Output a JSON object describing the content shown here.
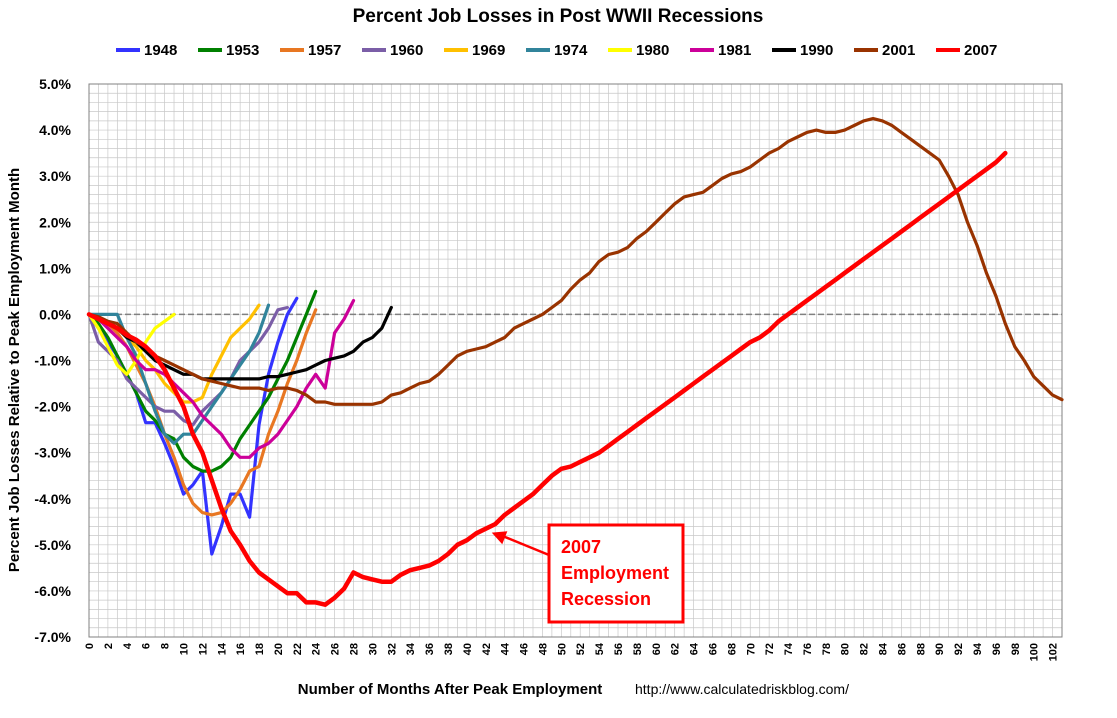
{
  "chart_data": {
    "type": "line",
    "title": "Percent Job Losses in Post WWII Recessions",
    "xlabel": "Number of Months After Peak Employment",
    "ylabel": "Percent Job Losses Relative to Peak Employment Month",
    "source": "http://www.calculatedriskblog.com/",
    "xlim": [
      0,
      103
    ],
    "ylim": [
      -7.0,
      5.0
    ],
    "grid": true,
    "legend_position": "top",
    "x_ticks": [
      "0",
      "2",
      "4",
      "6",
      "8",
      "10",
      "12",
      "14",
      "16",
      "18",
      "20",
      "22",
      "24",
      "26",
      "28",
      "30",
      "32",
      "34",
      "36",
      "38",
      "40",
      "42",
      "44",
      "46",
      "48",
      "50",
      "52",
      "54",
      "56",
      "58",
      "60",
      "62",
      "64",
      "66",
      "68",
      "70",
      "72",
      "74",
      "76",
      "78",
      "80",
      "82",
      "84",
      "86",
      "88",
      "90",
      "92",
      "94",
      "96",
      "98",
      "100",
      "102"
    ],
    "y_ticks": [
      "5.0%",
      "4.0%",
      "3.0%",
      "2.0%",
      "1.0%",
      "0.0%",
      "-1.0%",
      "-2.0%",
      "-3.0%",
      "-4.0%",
      "-5.0%",
      "-6.0%",
      "-7.0%"
    ],
    "series": [
      {
        "name": "1948",
        "color": "#3333ff",
        "values": [
          0,
          -0.3,
          -0.6,
          -0.9,
          -1.3,
          -1.7,
          -2.35,
          -2.35,
          -2.8,
          -3.3,
          -3.9,
          -3.7,
          -3.4,
          -5.2,
          -4.6,
          -3.9,
          -3.9,
          -4.4,
          -2.4,
          -1.3,
          -0.6,
          0.0,
          0.35
        ]
      },
      {
        "name": "1953",
        "color": "#008000",
        "values": [
          0,
          -0.2,
          -0.5,
          -0.9,
          -1.3,
          -1.7,
          -2.1,
          -2.3,
          -2.6,
          -2.7,
          -3.1,
          -3.3,
          -3.4,
          -3.4,
          -3.3,
          -3.1,
          -2.7,
          -2.4,
          -2.1,
          -1.8,
          -1.4,
          -1.0,
          -0.5,
          0.0,
          0.5
        ]
      },
      {
        "name": "1957",
        "color": "#e87722",
        "values": [
          0,
          -0.1,
          -0.2,
          -0.4,
          -0.7,
          -1.1,
          -1.5,
          -2.0,
          -2.6,
          -3.1,
          -3.7,
          -4.1,
          -4.3,
          -4.35,
          -4.3,
          -4.1,
          -3.8,
          -3.4,
          -3.3,
          -2.6,
          -2.1,
          -1.5,
          -1.0,
          -0.4,
          0.1
        ]
      },
      {
        "name": "1960",
        "color": "#7b5ea7",
        "values": [
          0,
          -0.6,
          -0.8,
          -1.0,
          -1.4,
          -1.6,
          -1.8,
          -2.0,
          -2.1,
          -2.1,
          -2.3,
          -2.4,
          -2.1,
          -1.9,
          -1.7,
          -1.4,
          -1.0,
          -0.8,
          -0.6,
          -0.3,
          0.1,
          0.15
        ]
      },
      {
        "name": "1969",
        "color": "#ffc000",
        "values": [
          0,
          -0.1,
          -0.2,
          -0.3,
          -0.5,
          -0.7,
          -1.0,
          -1.2,
          -1.5,
          -1.7,
          -1.9,
          -1.9,
          -1.8,
          -1.3,
          -0.9,
          -0.5,
          -0.3,
          -0.1,
          0.2
        ]
      },
      {
        "name": "1974",
        "color": "#31849b",
        "values": [
          0,
          0.0,
          0.0,
          0.0,
          -0.5,
          -0.9,
          -1.5,
          -2.1,
          -2.6,
          -2.8,
          -2.6,
          -2.6,
          -2.3,
          -2.0,
          -1.7,
          -1.4,
          -1.1,
          -0.8,
          -0.4,
          0.2
        ]
      },
      {
        "name": "1980",
        "color": "#ffff00",
        "values": [
          0,
          -0.3,
          -0.7,
          -1.1,
          -1.3,
          -1.0,
          -0.6,
          -0.3,
          -0.15,
          0.0
        ]
      },
      {
        "name": "1981",
        "color": "#cc0099",
        "values": [
          0,
          -0.1,
          -0.3,
          -0.5,
          -0.7,
          -1.0,
          -1.2,
          -1.2,
          -1.3,
          -1.5,
          -1.7,
          -1.9,
          -2.2,
          -2.4,
          -2.6,
          -2.9,
          -3.1,
          -3.1,
          -2.9,
          -2.8,
          -2.6,
          -2.3,
          -2.0,
          -1.6,
          -1.3,
          -1.6,
          -0.4,
          -0.1,
          0.3
        ]
      },
      {
        "name": "1990",
        "color": "#000000",
        "values": [
          0,
          -0.1,
          -0.2,
          -0.3,
          -0.5,
          -0.6,
          -0.8,
          -1.0,
          -1.1,
          -1.2,
          -1.3,
          -1.3,
          -1.4,
          -1.4,
          -1.4,
          -1.4,
          -1.4,
          -1.4,
          -1.4,
          -1.35,
          -1.35,
          -1.3,
          -1.25,
          -1.2,
          -1.1,
          -1.0,
          -0.95,
          -0.9,
          -0.8,
          -0.6,
          -0.5,
          -0.3,
          0.15
        ]
      },
      {
        "name": "2001",
        "color": "#993300",
        "values": [
          0,
          -0.05,
          -0.15,
          -0.2,
          -0.4,
          -0.6,
          -0.7,
          -0.9,
          -1.0,
          -1.1,
          -1.2,
          -1.3,
          -1.4,
          -1.45,
          -1.5,
          -1.55,
          -1.6,
          -1.6,
          -1.6,
          -1.65,
          -1.6,
          -1.6,
          -1.65,
          -1.75,
          -1.9,
          -1.9,
          -1.95,
          -1.95,
          -1.95,
          -1.95,
          -1.95,
          -1.9,
          -1.75,
          -1.7,
          -1.6,
          -1.5,
          -1.45,
          -1.3,
          -1.1,
          -0.9,
          -0.8,
          -0.75,
          -0.7,
          -0.6,
          -0.5,
          -0.3,
          -0.2,
          -0.1,
          0.0,
          0.15,
          0.3,
          0.55,
          0.75,
          0.9,
          1.15,
          1.3,
          1.35,
          1.45,
          1.65,
          1.8,
          2.0,
          2.2,
          2.4,
          2.55,
          2.6,
          2.65,
          2.8,
          2.95,
          3.05,
          3.1,
          3.2,
          3.35,
          3.5,
          3.6,
          3.75,
          3.85,
          3.95,
          4.0,
          3.95,
          3.95,
          4.0,
          4.1,
          4.2,
          4.25,
          4.2,
          4.1,
          3.95,
          3.8,
          3.65,
          3.5,
          3.35,
          3.0,
          2.6,
          2.0,
          1.5,
          0.9,
          0.4,
          -0.2,
          -0.7,
          -1.0,
          -1.35,
          -1.55,
          -1.75,
          -1.85
        ]
      },
      {
        "name": "2007",
        "color": "#ff0000",
        "values": [
          0,
          -0.1,
          -0.2,
          -0.3,
          -0.45,
          -0.55,
          -0.7,
          -0.9,
          -1.2,
          -1.6,
          -2.0,
          -2.6,
          -3.0,
          -3.6,
          -4.2,
          -4.7,
          -5.0,
          -5.35,
          -5.6,
          -5.75,
          -5.9,
          -6.05,
          -6.05,
          -6.25,
          -6.25,
          -6.3,
          -6.15,
          -5.95,
          -5.6,
          -5.7,
          -5.75,
          -5.8,
          -5.8,
          -5.65,
          -5.55,
          -5.5,
          -5.45,
          -5.35,
          -5.2,
          -5.0,
          -4.9,
          -4.75,
          -4.65,
          -4.55,
          -4.35,
          -4.2,
          -4.05,
          -3.9,
          -3.7,
          -3.5,
          -3.35,
          -3.3,
          -3.2,
          -3.1,
          -3.0,
          -2.85,
          -2.7,
          -2.55,
          -2.4,
          -2.25,
          -2.1,
          -1.95,
          -1.8,
          -1.65,
          -1.5,
          -1.35,
          -1.2,
          -1.05,
          -0.9,
          -0.75,
          -0.6,
          -0.5,
          -0.35,
          -0.15,
          0.0,
          0.15,
          0.3,
          0.45,
          0.6,
          0.75,
          0.9,
          1.05,
          1.2,
          1.35,
          1.5,
          1.65,
          1.8,
          1.95,
          2.1,
          2.25,
          2.4,
          2.55,
          2.7,
          2.85,
          3.0,
          3.15,
          3.3,
          3.5
        ]
      }
    ],
    "annotations": [
      {
        "lines": [
          "2007",
          "Employment",
          "Recession"
        ],
        "color": "#ff0000",
        "points_to": {
          "x": 42,
          "y": -4.8
        }
      }
    ]
  }
}
